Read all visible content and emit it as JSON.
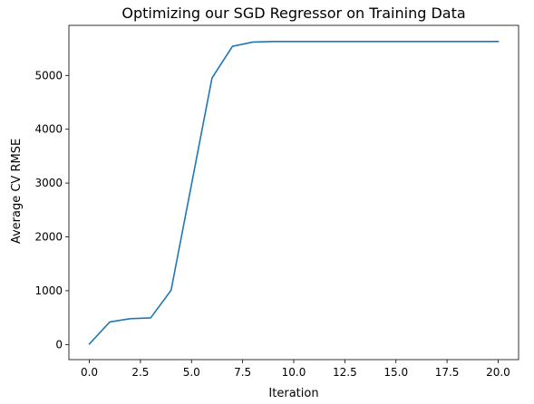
{
  "chart_data": {
    "type": "line",
    "title": "Optimizing our SGD Regressor on Training Data",
    "xlabel": "Iteration",
    "ylabel": "Average CV RMSE",
    "xlim": [
      -1.0,
      21.0
    ],
    "ylim": [
      -280,
      5930
    ],
    "xticks": [
      0.0,
      2.5,
      5.0,
      7.5,
      10.0,
      12.5,
      15.0,
      17.5,
      20.0
    ],
    "xtick_labels": [
      "0.0",
      "2.5",
      "5.0",
      "7.5",
      "10.0",
      "12.5",
      "15.0",
      "17.5",
      "20.0"
    ],
    "yticks": [
      0,
      1000,
      2000,
      3000,
      4000,
      5000
    ],
    "ytick_labels": [
      "0",
      "1000",
      "2000",
      "3000",
      "4000",
      "5000"
    ],
    "grid": false,
    "series": [
      {
        "color": "#1f77b4",
        "x": [
          0,
          1,
          2,
          3,
          4,
          5,
          6,
          7,
          8,
          9,
          10,
          11,
          12,
          13,
          14,
          15,
          16,
          17,
          18,
          19,
          20
        ],
        "y": [
          10,
          420,
          480,
          495,
          1010,
          2980,
          4950,
          5540,
          5620,
          5630,
          5630,
          5630,
          5630,
          5630,
          5630,
          5630,
          5630,
          5630,
          5630,
          5630,
          5630
        ]
      }
    ]
  }
}
